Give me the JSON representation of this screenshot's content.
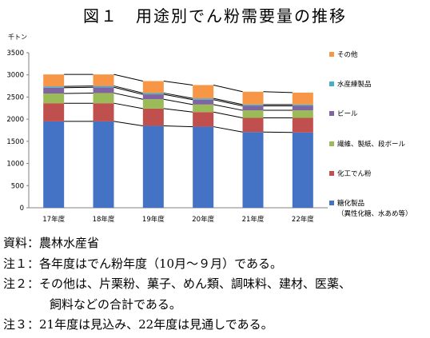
{
  "title": "図１　用途別でん粉需要量の推移",
  "unit": "千トン",
  "chart_data": {
    "type": "bar",
    "stacked": true,
    "categories": [
      "17年度",
      "18年度",
      "19年度",
      "20年度",
      "21年度",
      "22年度"
    ],
    "ylim": [
      0,
      3500
    ],
    "yticks": [
      0,
      500,
      1000,
      1500,
      2000,
      2500,
      3000,
      3500
    ],
    "series": [
      {
        "name": "糖化製品",
        "name_line2": "（異性化糖、水あめ等）",
        "color": "#4472c4",
        "values": [
          1950,
          1950,
          1850,
          1830,
          1710,
          1700
        ]
      },
      {
        "name": "化工でん粉",
        "color": "#c0504d",
        "values": [
          410,
          410,
          390,
          330,
          320,
          330
        ]
      },
      {
        "name": "繊維、製紙、段ボール",
        "color": "#9bbb59",
        "values": [
          220,
          230,
          210,
          170,
          170,
          170
        ]
      },
      {
        "name": "ビール",
        "color": "#8064a2",
        "values": [
          130,
          130,
          110,
          110,
          100,
          100
        ]
      },
      {
        "name": "水産練製品",
        "color": "#4bacc6",
        "values": [
          30,
          30,
          30,
          30,
          30,
          30
        ]
      },
      {
        "name": "その他",
        "color": "#f79646",
        "values": [
          270,
          260,
          270,
          300,
          290,
          270
        ]
      }
    ]
  },
  "notes": [
    "資料：農林水産省",
    "注１：各年度はでん粉年度（10月～９月）である。",
    "注２：その他は、片栗粉、菓子、めん類、調味料、建材、医薬、",
    "飼料などの合計である。",
    "注３：21年度は見込み、22年度は見通しである。"
  ]
}
